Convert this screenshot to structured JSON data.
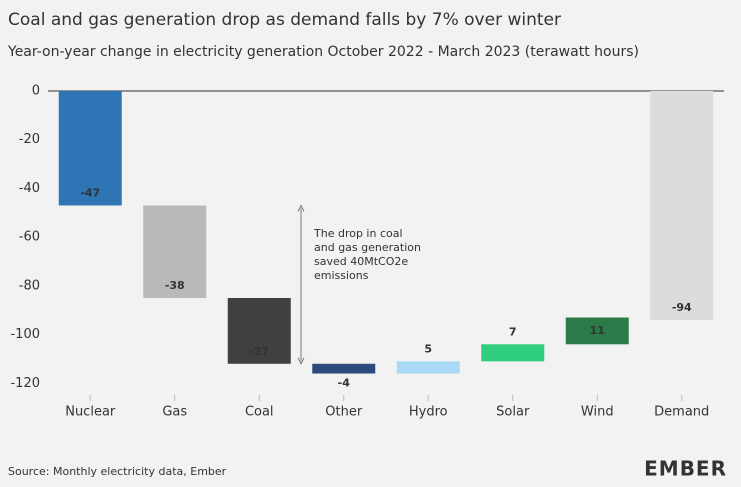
{
  "chart_data": {
    "type": "waterfall",
    "title": "Coal and gas generation drop as demand falls by 7% over winter",
    "subtitle": "Year-on-year change in electricity generation October 2022 - March 2023 (terawatt hours)",
    "categories": [
      "Nuclear",
      "Gas",
      "Coal",
      "Other",
      "Hydro",
      "Solar",
      "Wind",
      "Demand"
    ],
    "values": [
      -47,
      -38,
      -27,
      -4,
      5,
      7,
      11,
      -94
    ],
    "measure": [
      "relative",
      "relative",
      "relative",
      "relative",
      "relative",
      "relative",
      "relative",
      "total"
    ],
    "colors": [
      "#2e75b6",
      "#b9b9b9",
      "#404040",
      "#2c4b7c",
      "#a9d9f6",
      "#2fcf7d",
      "#2b7a48",
      "#dcdcdc"
    ],
    "label_colors": [
      "#ffffff",
      "#ffffff",
      "#ffffff",
      "#111111",
      "#111111",
      "#111111",
      "#ffffff",
      "#111111"
    ],
    "ylim": [
      -124,
      0
    ],
    "yticks": [
      0,
      -20,
      -40,
      -60,
      -80,
      -100,
      -120
    ],
    "annotation": [
      "The drop in coal",
      "and gas generation",
      "saved 40MtCO2e",
      "emissions"
    ],
    "source": "Source: Monthly electricity data, Ember",
    "logo": "EMBER"
  }
}
